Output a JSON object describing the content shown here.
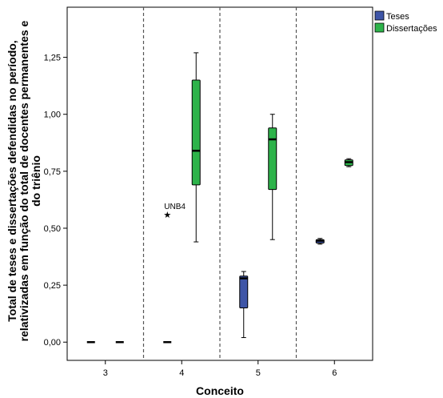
{
  "chart_data": {
    "type": "boxplot",
    "title": "",
    "xlabel": "Conceito",
    "ylabel_lines": [
      "Total de teses e dissertações defendidas no período,",
      "relativizadas em função do total de docentes permanentes e",
      "do triênio"
    ],
    "categories": [
      "3",
      "4",
      "5",
      "6"
    ],
    "ylim": [
      -0.08,
      1.47
    ],
    "yticks": [
      0.0,
      0.25,
      0.5,
      0.75,
      1.0,
      1.25
    ],
    "ytick_labels": [
      "0,00",
      "0,25",
      "0,50",
      "0,75",
      "1,00",
      "1,25"
    ],
    "grid": false,
    "category_separators": "dashed",
    "legend_position": "top-right",
    "colors": {
      "Teses": "#3e55a7",
      "Dissertações": "#2db34a"
    },
    "series": [
      {
        "name": "Teses",
        "boxes": [
          {
            "category": "3",
            "min": 0.0,
            "q1": 0.0,
            "median": 0.0,
            "q3": 0.0,
            "max": 0.0
          },
          {
            "category": "4",
            "min": 0.0,
            "q1": 0.0,
            "median": 0.0,
            "q3": 0.0,
            "max": 0.0
          },
          {
            "category": "5",
            "min": 0.02,
            "q1": 0.15,
            "median": 0.28,
            "q3": 0.29,
            "max": 0.31
          },
          {
            "category": "6",
            "min": 0.43,
            "q1": 0.435,
            "median": 0.445,
            "q3": 0.45,
            "max": 0.455
          }
        ]
      },
      {
        "name": "Dissertações",
        "boxes": [
          {
            "category": "3",
            "min": 0.0,
            "q1": 0.0,
            "median": 0.0,
            "q3": 0.0,
            "max": 0.0
          },
          {
            "category": "4",
            "min": 0.44,
            "q1": 0.69,
            "median": 0.84,
            "q3": 1.15,
            "max": 1.27
          },
          {
            "category": "5",
            "min": 0.45,
            "q1": 0.67,
            "median": 0.89,
            "q3": 0.94,
            "max": 1.0
          },
          {
            "category": "6",
            "min": 0.77,
            "q1": 0.775,
            "median": 0.79,
            "q3": 0.8,
            "max": 0.805
          }
        ]
      }
    ],
    "outliers": [
      {
        "series": "Teses",
        "category": "4",
        "value": 0.56,
        "marker": "★",
        "label": "UNB4"
      }
    ]
  }
}
